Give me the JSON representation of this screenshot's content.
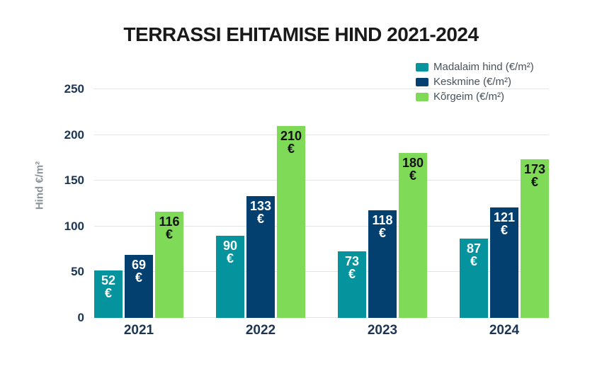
{
  "title": "TERRASSI EHITAMISE HIND 2021-2024",
  "legend": {
    "items": [
      {
        "label": "Madalaim hind (€/m²)",
        "color": "#05939D"
      },
      {
        "label": "Keskmine (€/m²)",
        "color": "#04406F"
      },
      {
        "label": "Kõrgeim (€/m²)",
        "color": "#7EDA57"
      }
    ]
  },
  "y_axis": {
    "title": "Hind €/m²",
    "tick_color": "#1B3553",
    "title_color": "#8A949A"
  },
  "chart_data": {
    "type": "bar",
    "title": "TERRASSI EHITAMISE HIND 2021-2024",
    "categories": [
      "2021",
      "2022",
      "2023",
      "2024"
    ],
    "series": [
      {
        "name": "Madalaim hind (€/m²)",
        "color": "#05939D",
        "label_color": "#FFFFFF",
        "values": [
          52,
          90,
          73,
          87
        ]
      },
      {
        "name": "Keskmine (€/m²)",
        "color": "#04406F",
        "label_color": "#FFFFFF",
        "values": [
          69,
          133,
          118,
          121
        ]
      },
      {
        "name": "Kõrgeim (€/m²)",
        "color": "#7EDA57",
        "label_color": "#111111",
        "values": [
          116,
          210,
          180,
          173
        ]
      }
    ],
    "value_suffix": "€",
    "xlabel": "",
    "ylabel": "Hind €/m²",
    "ylim": [
      0,
      250
    ],
    "yticks": [
      0,
      50,
      100,
      150,
      200,
      250
    ],
    "grid": true,
    "gridline_color": "#E4E4E4",
    "legend_position": "top-right",
    "background": "#FFFFFF"
  }
}
